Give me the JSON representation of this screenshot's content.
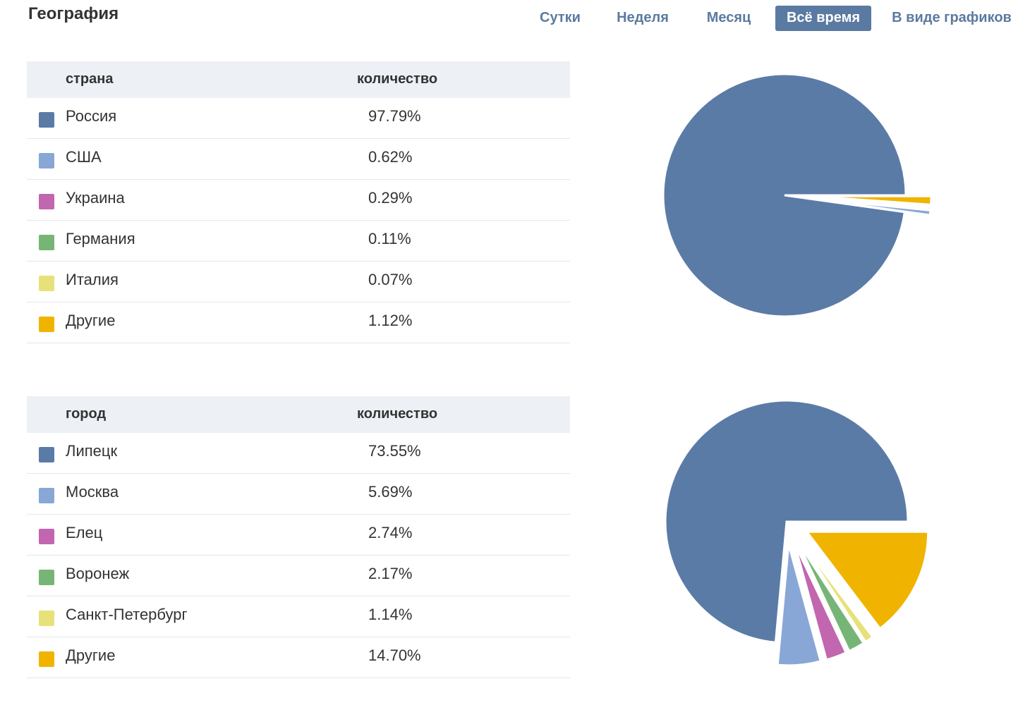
{
  "page": {
    "title": "География"
  },
  "period_tabs": [
    {
      "label": "Сутки",
      "active": false
    },
    {
      "label": "Неделя",
      "active": false
    },
    {
      "label": "Месяц",
      "active": false
    },
    {
      "label": "Всё время",
      "active": true
    },
    {
      "label": "В виде графиков",
      "active": false
    }
  ],
  "colors": {
    "accent": "#5a7aa2",
    "series": [
      "#5b7ba7",
      "#88a7d6",
      "#c266b0",
      "#77b577",
      "#e7e17a",
      "#f0b400"
    ]
  },
  "country_table": {
    "header": {
      "name": "страна",
      "value": "количество"
    },
    "rows": [
      {
        "name": "Россия",
        "value": "97.79%"
      },
      {
        "name": "США",
        "value": "0.62%"
      },
      {
        "name": "Украина",
        "value": "0.29%"
      },
      {
        "name": "Германия",
        "value": "0.11%"
      },
      {
        "name": "Италия",
        "value": "0.07%"
      },
      {
        "name": "Другие",
        "value": "1.12%"
      }
    ]
  },
  "city_table": {
    "header": {
      "name": "город",
      "value": "количество"
    },
    "rows": [
      {
        "name": "Липецк",
        "value": "73.55%"
      },
      {
        "name": "Москва",
        "value": "5.69%"
      },
      {
        "name": "Елец",
        "value": "2.74%"
      },
      {
        "name": "Воронеж",
        "value": "2.17%"
      },
      {
        "name": "Санкт-Петербург",
        "value": "1.14%"
      },
      {
        "name": "Другие",
        "value": "14.70%"
      }
    ]
  },
  "chart_data": [
    {
      "type": "pie",
      "categories": [
        "Россия",
        "США",
        "Украина",
        "Германия",
        "Италия",
        "Другие"
      ],
      "values": [
        97.79,
        0.62,
        0.29,
        0.11,
        0.07,
        1.12
      ],
      "exploded": "all-except-first",
      "colors": [
        "#5b7ba7",
        "#88a7d6",
        "#c266b0",
        "#77b577",
        "#e7e17a",
        "#f0b400"
      ]
    },
    {
      "type": "pie",
      "categories": [
        "Липецк",
        "Москва",
        "Елец",
        "Воронеж",
        "Санкт-Петербург",
        "Другие"
      ],
      "values": [
        73.55,
        5.69,
        2.74,
        2.17,
        1.14,
        14.7
      ],
      "exploded": "all-except-first",
      "colors": [
        "#5b7ba7",
        "#88a7d6",
        "#c266b0",
        "#77b577",
        "#e7e17a",
        "#f0b400"
      ]
    }
  ]
}
